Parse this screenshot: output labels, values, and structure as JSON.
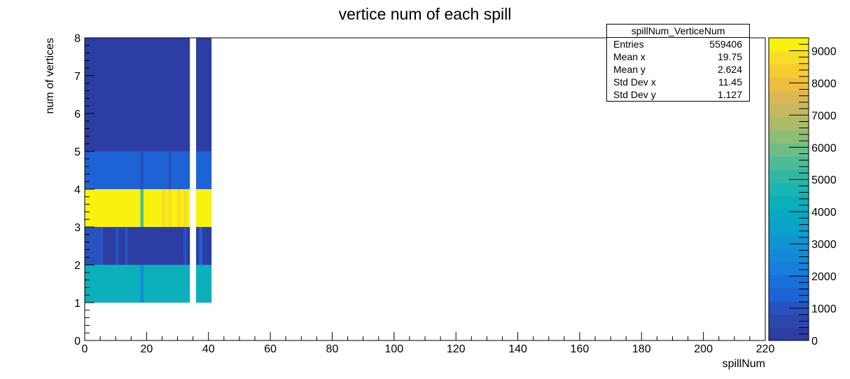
{
  "chart_data": {
    "type": "heatmap",
    "title": "vertice num of each spill",
    "xlabel": "spillNum",
    "ylabel": "num of vertices",
    "xlim": [
      0,
      220
    ],
    "ylim": [
      0,
      8
    ],
    "zlim": [
      0,
      9400
    ],
    "x_ticks": [
      "0",
      "20",
      "40",
      "60",
      "80",
      "100",
      "120",
      "140",
      "160",
      "180",
      "200",
      "220"
    ],
    "y_ticks": [
      "0",
      "1",
      "2",
      "3",
      "4",
      "5",
      "6",
      "7",
      "8"
    ],
    "z_ticks": [
      "0",
      "1000",
      "2000",
      "3000",
      "4000",
      "5000",
      "6000",
      "7000",
      "8000",
      "9000"
    ],
    "spill_ranges": [
      [
        0,
        34
      ],
      [
        36,
        41
      ]
    ],
    "bands": [
      {
        "y": [
          1,
          2
        ],
        "z": 4400,
        "variations": [
          {
            "x": [
              18,
              19
            ],
            "z": 2600
          }
        ]
      },
      {
        "y": [
          2,
          3
        ],
        "z": 400,
        "variations": [
          {
            "x": [
              0,
              6
            ],
            "z": 900
          },
          {
            "x": [
              10,
              11
            ],
            "z": 1100
          },
          {
            "x": [
              13,
              14
            ],
            "z": 1100
          },
          {
            "x": [
              32,
              33
            ],
            "z": 1100
          },
          {
            "x": [
              37,
              38
            ],
            "z": 1300
          }
        ]
      },
      {
        "y": [
          3,
          4
        ],
        "z": 9400,
        "variations": [
          {
            "x": [
              18,
              19
            ],
            "z": 5500
          },
          {
            "x": [
              25,
              26
            ],
            "z": 8900
          },
          {
            "x": [
              27,
              28
            ],
            "z": 8900
          },
          {
            "x": [
              30,
              31
            ],
            "z": 8900
          },
          {
            "x": [
              32,
              33
            ],
            "z": 8900
          }
        ]
      },
      {
        "y": [
          4,
          5
        ],
        "z": 1400,
        "variations": [
          {
            "x": [
              18,
              19
            ],
            "z": 1100
          },
          {
            "x": [
              27,
              28
            ],
            "z": 1100
          }
        ]
      },
      {
        "y": [
          5,
          8
        ],
        "z": 300,
        "variations": []
      }
    ],
    "palette": [
      "#2c3ea3",
      "#2b47ac",
      "#2852be",
      "#1d63d6",
      "#1970dc",
      "#167fdb",
      "#1489d8",
      "#1195d2",
      "#0ca0cc",
      "#07a8c3",
      "#0ab0ba",
      "#1ab4b1",
      "#31b8a5",
      "#4ebb98",
      "#6ebd86",
      "#8dbd76",
      "#aabc6a",
      "#c4b960",
      "#dbb855",
      "#f0be3e",
      "#f7cb32",
      "#f8dc27",
      "#f9f10e"
    ]
  },
  "stats": {
    "title": "spillNum_VerticeNum",
    "rows": [
      {
        "label": "Entries",
        "value": "559406"
      },
      {
        "label": "Mean x",
        "value": "19.75"
      },
      {
        "label": "Mean y",
        "value": "2.624"
      },
      {
        "label": "Std Dev x",
        "value": "11.45"
      },
      {
        "label": "Std Dev y",
        "value": "1.127"
      }
    ]
  }
}
